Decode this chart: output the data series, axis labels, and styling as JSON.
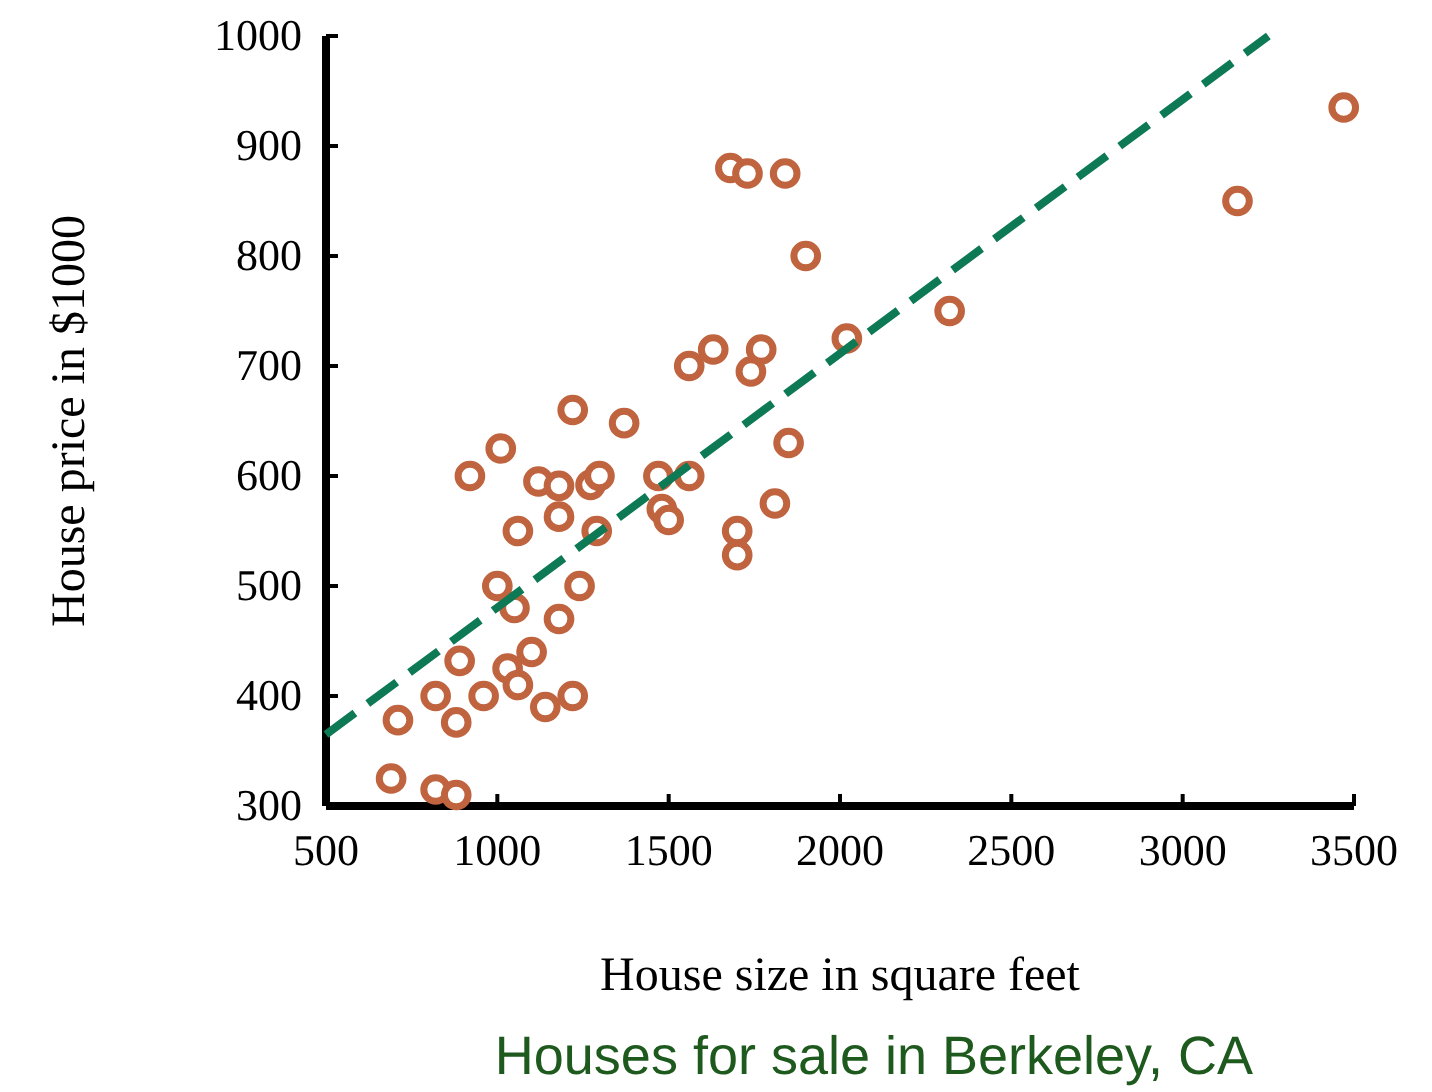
{
  "chart_data": {
    "type": "scatter",
    "xlabel": "House size in square feet",
    "ylabel": "House price in $1000",
    "xlim": [
      500,
      3500
    ],
    "xticks": [
      500,
      1000,
      1500,
      2000,
      2500,
      3000,
      3500
    ],
    "ylim": [
      300,
      1000
    ],
    "yticks": [
      300,
      400,
      500,
      600,
      700,
      800,
      900,
      1000
    ],
    "grid": false,
    "series": [
      {
        "color": "#c0633f",
        "marker": "circle",
        "x": [
          690,
          820,
          880,
          710,
          880,
          820,
          960,
          890,
          1030,
          1060,
          1140,
          1220,
          1100,
          1180,
          1240,
          1000,
          1050,
          1060,
          920,
          1010,
          1120,
          1180,
          1180,
          1220,
          1272,
          1298,
          1290,
          1370,
          1470,
          1560,
          1480,
          1500,
          1700,
          1700,
          1810,
          1850,
          1560,
          1630,
          1740,
          1770,
          2020,
          2320,
          1680,
          1730,
          1840,
          1900,
          3160,
          3470
        ],
        "values": [
          325,
          315,
          310,
          378,
          376,
          400,
          400,
          432,
          425,
          410,
          390,
          400,
          440,
          470,
          500,
          500,
          480,
          550,
          600,
          625,
          595,
          591,
          563,
          660,
          592,
          600,
          550,
          648,
          600,
          600,
          570,
          560,
          550,
          528,
          575,
          630,
          700,
          715,
          695,
          715,
          725,
          750,
          880,
          875,
          875,
          800,
          850,
          935
        ]
      },
      {
        "type": "line",
        "color": "#0e7a55",
        "line_style": "dashed",
        "x": [
          500,
          3250
        ],
        "values": [
          365,
          1000
        ]
      }
    ],
    "annotations": [
      "Houses for sale in Berkeley, CA"
    ]
  }
}
